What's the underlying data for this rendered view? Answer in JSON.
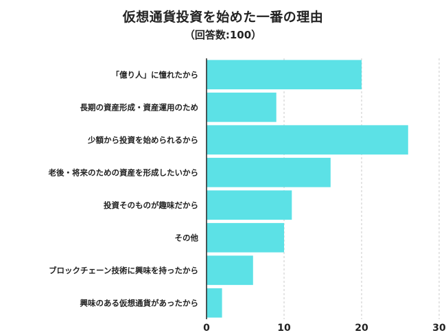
{
  "title": "仮想通貨投資を始めた一番の理由",
  "subtitle": "（回答数:100）",
  "chart_data": {
    "type": "bar",
    "orientation": "horizontal",
    "title": "仮想通貨投資を始めた一番の理由",
    "subtitle": "（回答数:100）",
    "categories": [
      "「億り人」に憧れたから",
      "長期の資産形成・資産運用のため",
      "少額から投資を始められるから",
      "老後・将来のための資産を形成したいから",
      "投資そのものが趣味だから",
      "その他",
      "ブロックチェーン技術に興味を持ったから",
      "興味のある仮想通貨があったから"
    ],
    "values": [
      20,
      9,
      26,
      16,
      11,
      10,
      6,
      2
    ],
    "xlim": [
      0,
      30
    ],
    "xticks": [
      "0",
      "10",
      "20",
      "30"
    ],
    "bar_color": "#5ce1e6",
    "grid": "vertical-dashed"
  }
}
